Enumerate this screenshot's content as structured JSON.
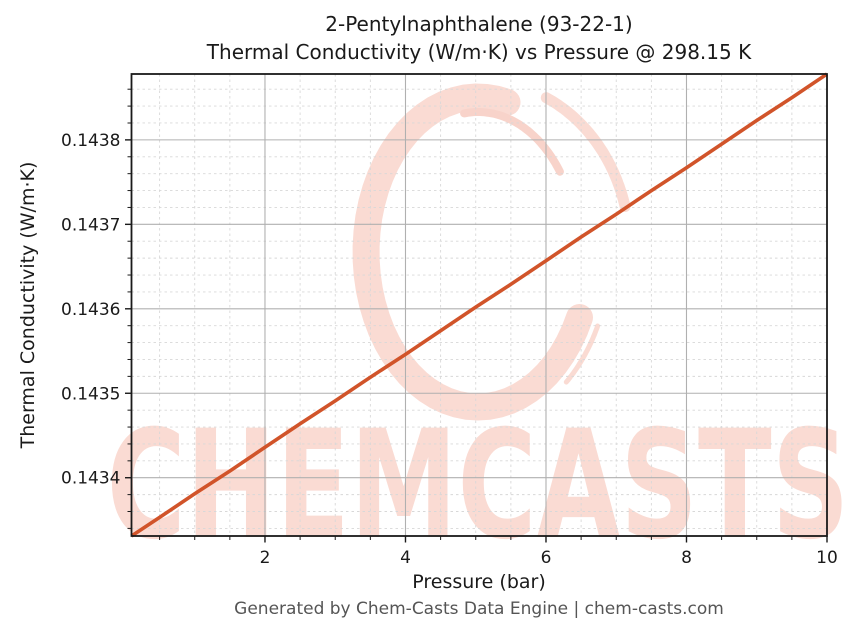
{
  "chart_data": {
    "type": "line",
    "title_line1": "2-Pentylnaphthalene (93-22-1)",
    "title_line2": "Thermal Conductivity (W/m·K) vs Pressure @ 298.15 K",
    "xlabel": "Pressure (bar)",
    "ylabel": "Thermal Conductivity (W/m·K)",
    "xlim": [
      0.1,
      10
    ],
    "ylim": [
      0.143331,
      0.143878
    ],
    "x_major_ticks": [
      2,
      4,
      6,
      8,
      10
    ],
    "x_tick_labels": [
      "2",
      "4",
      "6",
      "8",
      "10"
    ],
    "x_minor_step": 0.5,
    "y_major_ticks": [
      0.1434,
      0.1435,
      0.1436,
      0.1437,
      0.1438
    ],
    "y_tick_labels": [
      "0.1434",
      "0.1435",
      "0.1436",
      "0.1437",
      "0.1438"
    ],
    "y_minor_step": 2e-05,
    "grid": true,
    "legend": "none",
    "series": [
      {
        "name": "Thermal Conductivity (W/m·K)",
        "x": [
          0.1,
          0.5,
          1.0,
          1.5,
          2.0,
          2.5,
          3.0,
          3.5,
          4.0,
          4.5,
          5.0,
          5.5,
          6.0,
          6.5,
          7.0,
          7.5,
          8.0,
          8.5,
          9.0,
          9.5,
          10.0
        ],
        "y": [
          0.143331,
          0.143353,
          0.143381,
          0.143408,
          0.143436,
          0.143464,
          0.143491,
          0.143519,
          0.143546,
          0.143574,
          0.143602,
          0.143629,
          0.143657,
          0.143685,
          0.143712,
          0.14374,
          0.143767,
          0.143795,
          0.143823,
          0.14385,
          0.143878
        ]
      }
    ]
  },
  "watermark": {
    "text": "CHEMCASTS",
    "logo": "brush-ring-icon"
  },
  "footer": {
    "text": "Generated by Chem-Casts Data Engine | chem-casts.com"
  },
  "colors": {
    "line": "#d1542a",
    "watermark_pink": "#fadbd3",
    "watermark_pink_deep": "#f8d3ca",
    "grid_major": "#b0b0b0",
    "grid_minor": "#d8d8d8",
    "spine": "#1a1a1a",
    "tick_label": "#1a1a1a",
    "title_text": "#1a1a1a",
    "footer_text": "#555555"
  }
}
